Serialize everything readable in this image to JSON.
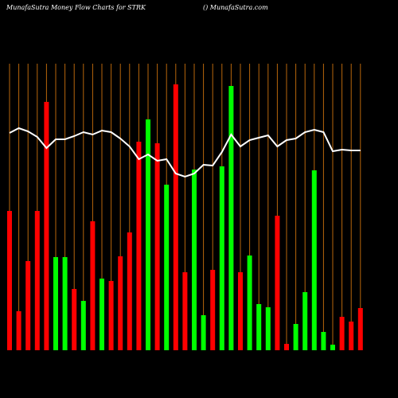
{
  "chart_data": {
    "type": "bar",
    "title": "MunafaSutra  Money Flow  Charts for STRK",
    "subtitle": "() MunafaSutra.com",
    "values": [
      175,
      49,
      112,
      175,
      312,
      117,
      117,
      77,
      62,
      162,
      90,
      87,
      118,
      148,
      262,
      290,
      260,
      208,
      334,
      98,
      227,
      44,
      101,
      231,
      332,
      98,
      119,
      58,
      54,
      169,
      8,
      33,
      73,
      226,
      23,
      7,
      42,
      36,
      53
    ],
    "colors": [
      "#ff0000",
      "#ff0000",
      "#ff0000",
      "#ff0000",
      "#ff0000",
      "#00ff00",
      "#00ff00",
      "#ff0000",
      "#00ff00",
      "#ff0000",
      "#00ff00",
      "#ff0000",
      "#ff0000",
      "#ff0000",
      "#ff0000",
      "#00ff00",
      "#ff0000",
      "#00ff00",
      "#ff0000",
      "#ff0000",
      "#00ff00",
      "#00ff00",
      "#ff0000",
      "#00ff00",
      "#00ff00",
      "#ff0000",
      "#00ff00",
      "#00ff00",
      "#00ff00",
      "#ff0000",
      "#ff0000",
      "#00ff00",
      "#00ff00",
      "#00ff00",
      "#00ff00",
      "#00ff00",
      "#ff0000",
      "#ff0000",
      "#ff0000"
    ],
    "line": {
      "color": "#ffffff",
      "values": [
        273,
        279,
        275,
        268,
        254,
        265,
        265,
        269,
        274,
        271,
        276,
        274,
        266,
        256,
        240,
        246,
        238,
        240,
        222,
        218,
        222,
        233,
        232,
        249,
        271,
        256,
        264,
        267,
        270,
        256,
        264,
        266,
        274,
        277,
        274,
        250,
        252,
        251,
        251
      ]
    },
    "ylim": [
      0,
      350
    ],
    "grid_color": "#b8660b"
  }
}
